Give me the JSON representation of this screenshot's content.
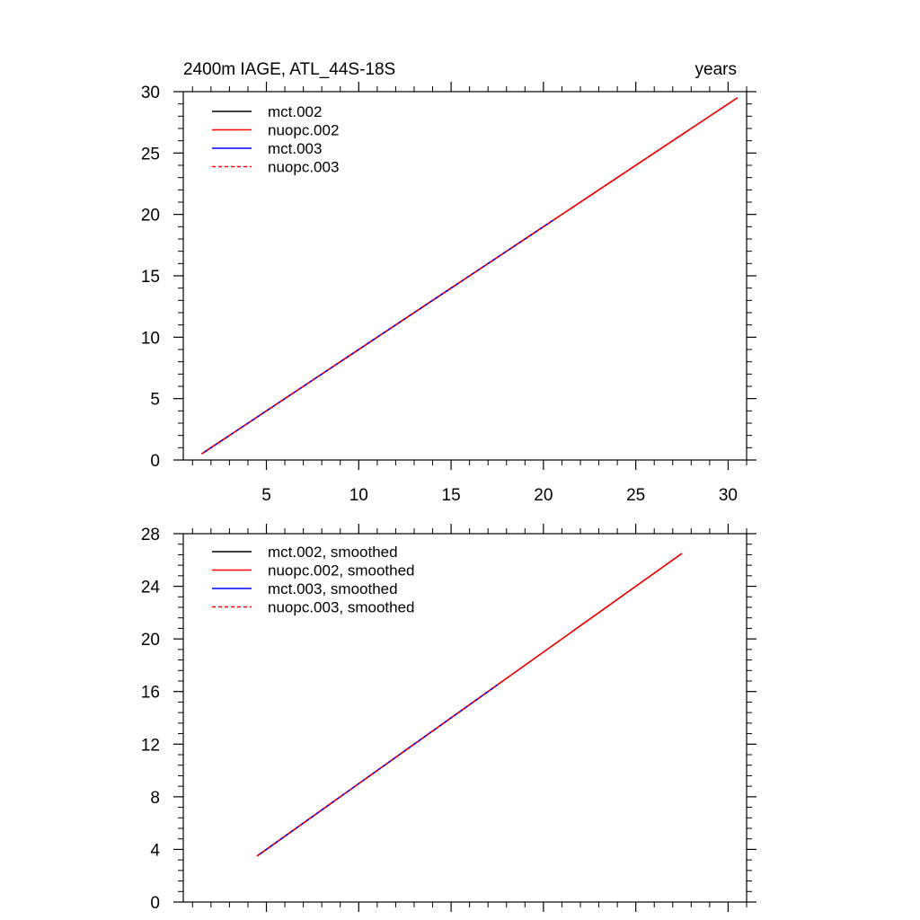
{
  "chart_data": [
    {
      "type": "line",
      "title_left": "2400m IAGE, ATL_44S-18S",
      "title_right": "years",
      "xlim": [
        0.5,
        31
      ],
      "ylim": [
        0,
        30
      ],
      "x_ticks": [
        5,
        10,
        15,
        20,
        25,
        30
      ],
      "y_ticks": [
        0,
        5,
        10,
        15,
        20,
        25,
        30
      ],
      "legend_position": "top-left",
      "series": [
        {
          "name": "mct.002",
          "color": "#000000",
          "dash": "solid",
          "x": [
            1.5,
            30.5
          ],
          "y": [
            0.5,
            29.5
          ]
        },
        {
          "name": "nuopc.002",
          "color": "#ff0000",
          "dash": "solid",
          "x": [
            1.5,
            30.5
          ],
          "y": [
            0.5,
            29.5
          ]
        },
        {
          "name": "mct.003",
          "color": "#0000ff",
          "dash": "solid",
          "x": [
            1.5,
            20.5
          ],
          "y": [
            0.5,
            19.5
          ]
        },
        {
          "name": "nuopc.003",
          "color": "#ff0000",
          "dash": "dashed",
          "x": [
            1.5,
            20.5
          ],
          "y": [
            0.5,
            19.5
          ]
        }
      ]
    },
    {
      "type": "line",
      "title_left": "",
      "title_right": "",
      "xlim": [
        0.5,
        31
      ],
      "ylim": [
        0,
        28
      ],
      "x_ticks": [
        5,
        10,
        15,
        20,
        25,
        30
      ],
      "x_tick_labels_shown": false,
      "y_ticks": [
        0,
        4,
        8,
        12,
        16,
        20,
        24,
        28
      ],
      "legend_position": "top-left",
      "series": [
        {
          "name": "mct.002, smoothed",
          "color": "#000000",
          "dash": "solid",
          "x": [
            4.5,
            27.5
          ],
          "y": [
            3.5,
            26.5
          ]
        },
        {
          "name": "nuopc.002, smoothed",
          "color": "#ff0000",
          "dash": "solid",
          "x": [
            4.5,
            27.5
          ],
          "y": [
            3.5,
            26.5
          ]
        },
        {
          "name": "mct.003, smoothed",
          "color": "#0000ff",
          "dash": "solid",
          "x": [
            4.5,
            17.5
          ],
          "y": [
            3.5,
            16.5
          ]
        },
        {
          "name": "nuopc.003, smoothed",
          "color": "#ff0000",
          "dash": "dashed",
          "x": [
            4.5,
            17.5
          ],
          "y": [
            3.5,
            16.5
          ]
        }
      ]
    }
  ]
}
